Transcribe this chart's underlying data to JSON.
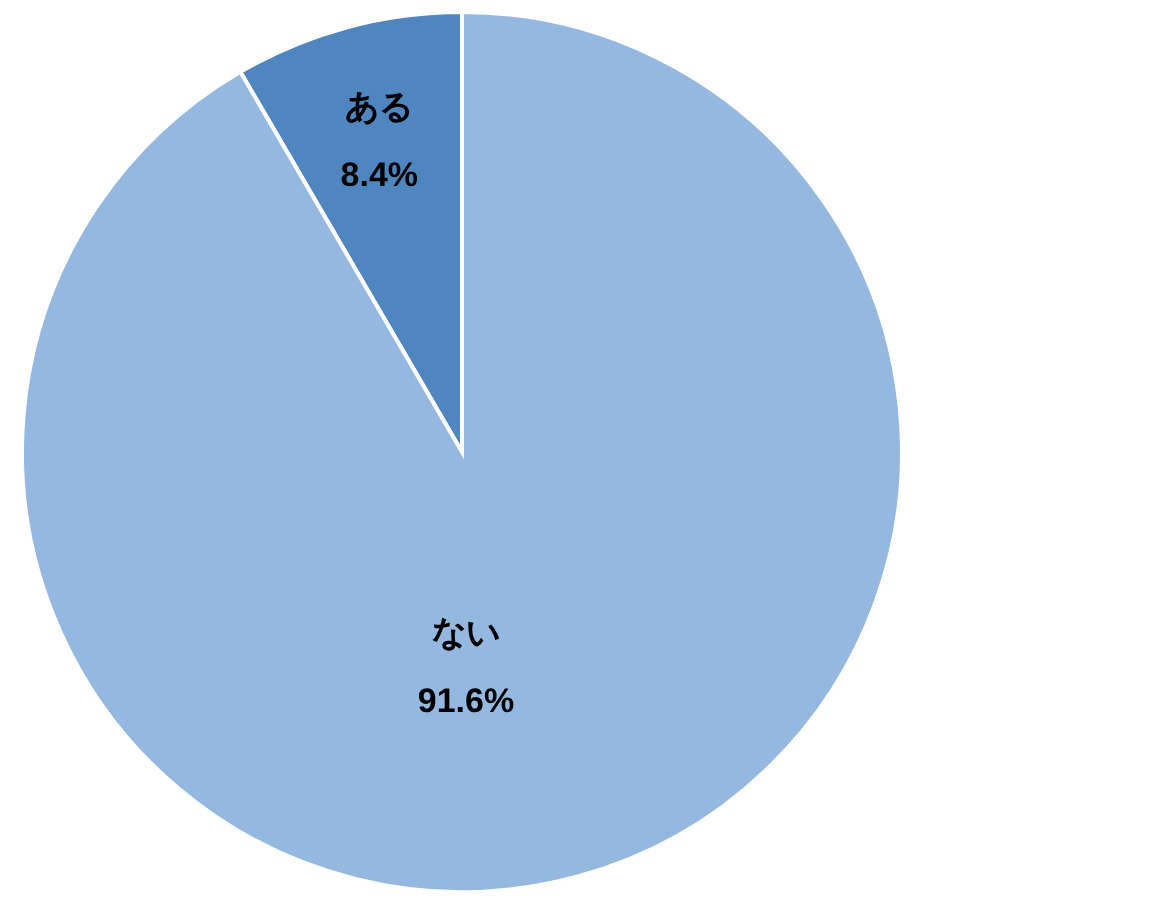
{
  "chart_data": {
    "type": "pie",
    "categories": [
      "ある",
      "ない"
    ],
    "values": [
      8.4,
      91.6
    ],
    "colors": [
      "#4f86bf",
      "#95b8e0"
    ],
    "value_labels": [
      "8.4%",
      "91.6%"
    ],
    "legend": false
  }
}
